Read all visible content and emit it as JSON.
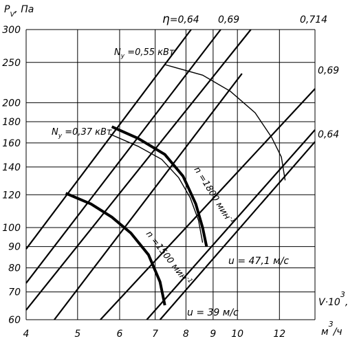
{
  "chart_data": {
    "type": "line",
    "title": "",
    "ylabel": "P_V, Па",
    "xlabel": "V·10³, м³/ч",
    "x_axis": {
      "scale": "log",
      "range": [
        4,
        14
      ],
      "ticks": [
        4,
        5,
        6,
        7,
        8,
        9,
        10,
        12
      ]
    },
    "y_axis": {
      "scale": "log",
      "range": [
        60,
        300
      ],
      "ticks": [
        60,
        70,
        80,
        90,
        100,
        120,
        140,
        160,
        180,
        200,
        250,
        300
      ]
    },
    "grid": true,
    "axis_text": {
      "y_symbol": "P",
      "y_sub": "V",
      "y_unit": ", Па",
      "x_symbol": "V·10",
      "x_exp": "3",
      "x_comma": ",",
      "x_unit": "м",
      "x_unit_exp": "3",
      "x_unit_tail": "/ч"
    },
    "efficiency_lines": {
      "symbol": "η",
      "top_labels": [
        "=0,64",
        "0,69",
        "0,714"
      ],
      "right_labels": [
        "0,69",
        "0,64"
      ],
      "lines": [
        {
          "pts": [
            [
              4.0,
              63.3
            ],
            [
              10.6,
              300
            ]
          ]
        },
        {
          "pts": [
            [
              4.0,
              73.5
            ],
            [
              9.3,
              300
            ]
          ]
        },
        {
          "pts": [
            [
              4.0,
              88.8
            ],
            [
              8.18,
              300
            ]
          ]
        },
        {
          "pts": [
            [
              4.52,
              60
            ],
            [
              10.2,
              235
            ]
          ]
        },
        {
          "pts": [
            [
              5.52,
              60
            ],
            [
              14.0,
              216
            ]
          ]
        },
        {
          "pts": [
            [
              6.75,
              60
            ],
            [
              14.0,
              172
            ]
          ]
        },
        {
          "pts": [
            [
              7.15,
              60
            ],
            [
              14.0,
              161
            ]
          ]
        }
      ]
    },
    "series": [
      {
        "name": "n=1500 мин⁻¹",
        "label_parts": [
          "n",
          " =1500 мин",
          "-1"
        ],
        "style": "thick",
        "points": [
          [
            4.75,
            121
          ],
          [
            5.3,
            114
          ],
          [
            5.8,
            106
          ],
          [
            6.3,
            97
          ],
          [
            6.8,
            86
          ],
          [
            7.15,
            74
          ],
          [
            7.3,
            65
          ]
        ]
      },
      {
        "name": "n=1800 мин⁻¹",
        "label_parts": [
          "n",
          " =1800 мин",
          "-1"
        ],
        "style": "thick",
        "points": [
          [
            5.8,
            175
          ],
          [
            6.5,
            164
          ],
          [
            7.3,
            150
          ],
          [
            7.9,
            133
          ],
          [
            8.35,
            114
          ],
          [
            8.6,
            100
          ],
          [
            8.75,
            90
          ]
        ]
      },
      {
        "name": "N_y=0,37 кВт",
        "label_parts": [
          "N",
          "y",
          " =0,37 кВт"
        ],
        "style": "thin",
        "points": [
          [
            5.75,
            168
          ],
          [
            6.5,
            157
          ],
          [
            7.2,
            146
          ],
          [
            7.75,
            132
          ],
          [
            8.15,
            118
          ],
          [
            8.45,
            104
          ],
          [
            8.6,
            92
          ]
        ]
      },
      {
        "name": "N_y=0,55 кВт",
        "label_parts": [
          "N",
          "y",
          " =0,55 кВт"
        ],
        "style": "thin",
        "points": [
          [
            7.3,
            247
          ],
          [
            8.6,
            233
          ],
          [
            9.7,
            213
          ],
          [
            10.8,
            189
          ],
          [
            11.6,
            165
          ],
          [
            12.1,
            148
          ],
          [
            12.3,
            130
          ]
        ]
      }
    ],
    "annotations": {
      "u1": "u = 47,1 м/с",
      "u2": "u = 39 м/с"
    }
  }
}
